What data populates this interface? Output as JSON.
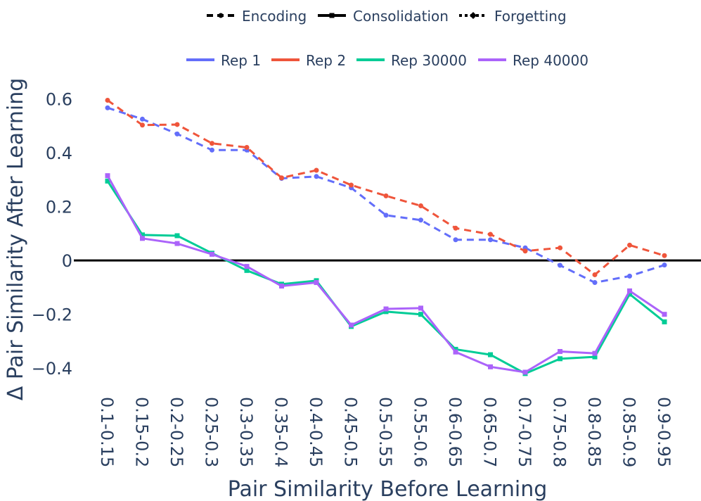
{
  "chart_data": {
    "type": "line",
    "title": "",
    "xlabel": "Pair Similarity Before Learning",
    "ylabel": "Δ Pair Similarity After Learning",
    "categories": [
      "0.1-0.15",
      "0.15-0.2",
      "0.2-0.25",
      "0.25-0.3",
      "0.3-0.35",
      "0.35-0.4",
      "0.4-0.45",
      "0.45-0.5",
      "0.5-0.55",
      "0.55-0.6",
      "0.6-0.65",
      "0.65-0.7",
      "0.7-0.75",
      "0.75-0.8",
      "0.8-0.85",
      "0.85-0.9",
      "0.9-0.95"
    ],
    "ylim": [
      -0.47,
      0.68
    ],
    "yticks": [
      -0.4,
      -0.2,
      0,
      0.2,
      0.4,
      0.6
    ],
    "ytick_labels": [
      "−0.4",
      "−0.2",
      "0",
      "0.2",
      "0.4",
      "0.6"
    ],
    "style_legend": [
      {
        "name": "Encoding",
        "marker": "circle",
        "dash": "dash"
      },
      {
        "name": "Consolidation",
        "marker": "square",
        "dash": "solid"
      },
      {
        "name": "Forgetting",
        "marker": "diamond",
        "dash": "dot"
      }
    ],
    "color_legend": [
      {
        "name": "Rep 1",
        "color": "#636efa"
      },
      {
        "name": "Rep 2",
        "color": "#ef553b"
      },
      {
        "name": "Rep 30000",
        "color": "#00cc96"
      },
      {
        "name": "Rep 40000",
        "color": "#ab63fa"
      }
    ],
    "series": [
      {
        "name": "Rep 1",
        "phase": "Encoding",
        "color": "#636efa",
        "marker": "circle",
        "dash": "dash",
        "values": [
          0.567,
          0.525,
          0.47,
          0.41,
          0.41,
          0.305,
          0.312,
          0.27,
          0.168,
          0.15,
          0.077,
          0.077,
          0.047,
          -0.018,
          -0.082,
          -0.058,
          -0.017
        ]
      },
      {
        "name": "Rep 2",
        "phase": "Encoding",
        "color": "#ef553b",
        "marker": "circle",
        "dash": "dash",
        "values": [
          0.595,
          0.503,
          0.505,
          0.435,
          0.42,
          0.307,
          0.335,
          0.28,
          0.24,
          0.203,
          0.12,
          0.097,
          0.035,
          0.047,
          -0.053,
          0.057,
          0.018
        ]
      },
      {
        "name": "Rep 30000",
        "phase": "Consolidation",
        "color": "#00cc96",
        "marker": "square",
        "dash": "solid",
        "values": [
          0.295,
          0.095,
          0.092,
          0.027,
          -0.037,
          -0.088,
          -0.075,
          -0.245,
          -0.19,
          -0.2,
          -0.33,
          -0.35,
          -0.42,
          -0.365,
          -0.358,
          -0.125,
          -0.228
        ]
      },
      {
        "name": "Rep 40000",
        "phase": "Consolidation",
        "color": "#ab63fa",
        "marker": "square",
        "dash": "solid",
        "values": [
          0.315,
          0.082,
          0.063,
          0.023,
          -0.022,
          -0.095,
          -0.082,
          -0.24,
          -0.18,
          -0.177,
          -0.34,
          -0.395,
          -0.415,
          -0.338,
          -0.345,
          -0.113,
          -0.2
        ]
      }
    ]
  }
}
